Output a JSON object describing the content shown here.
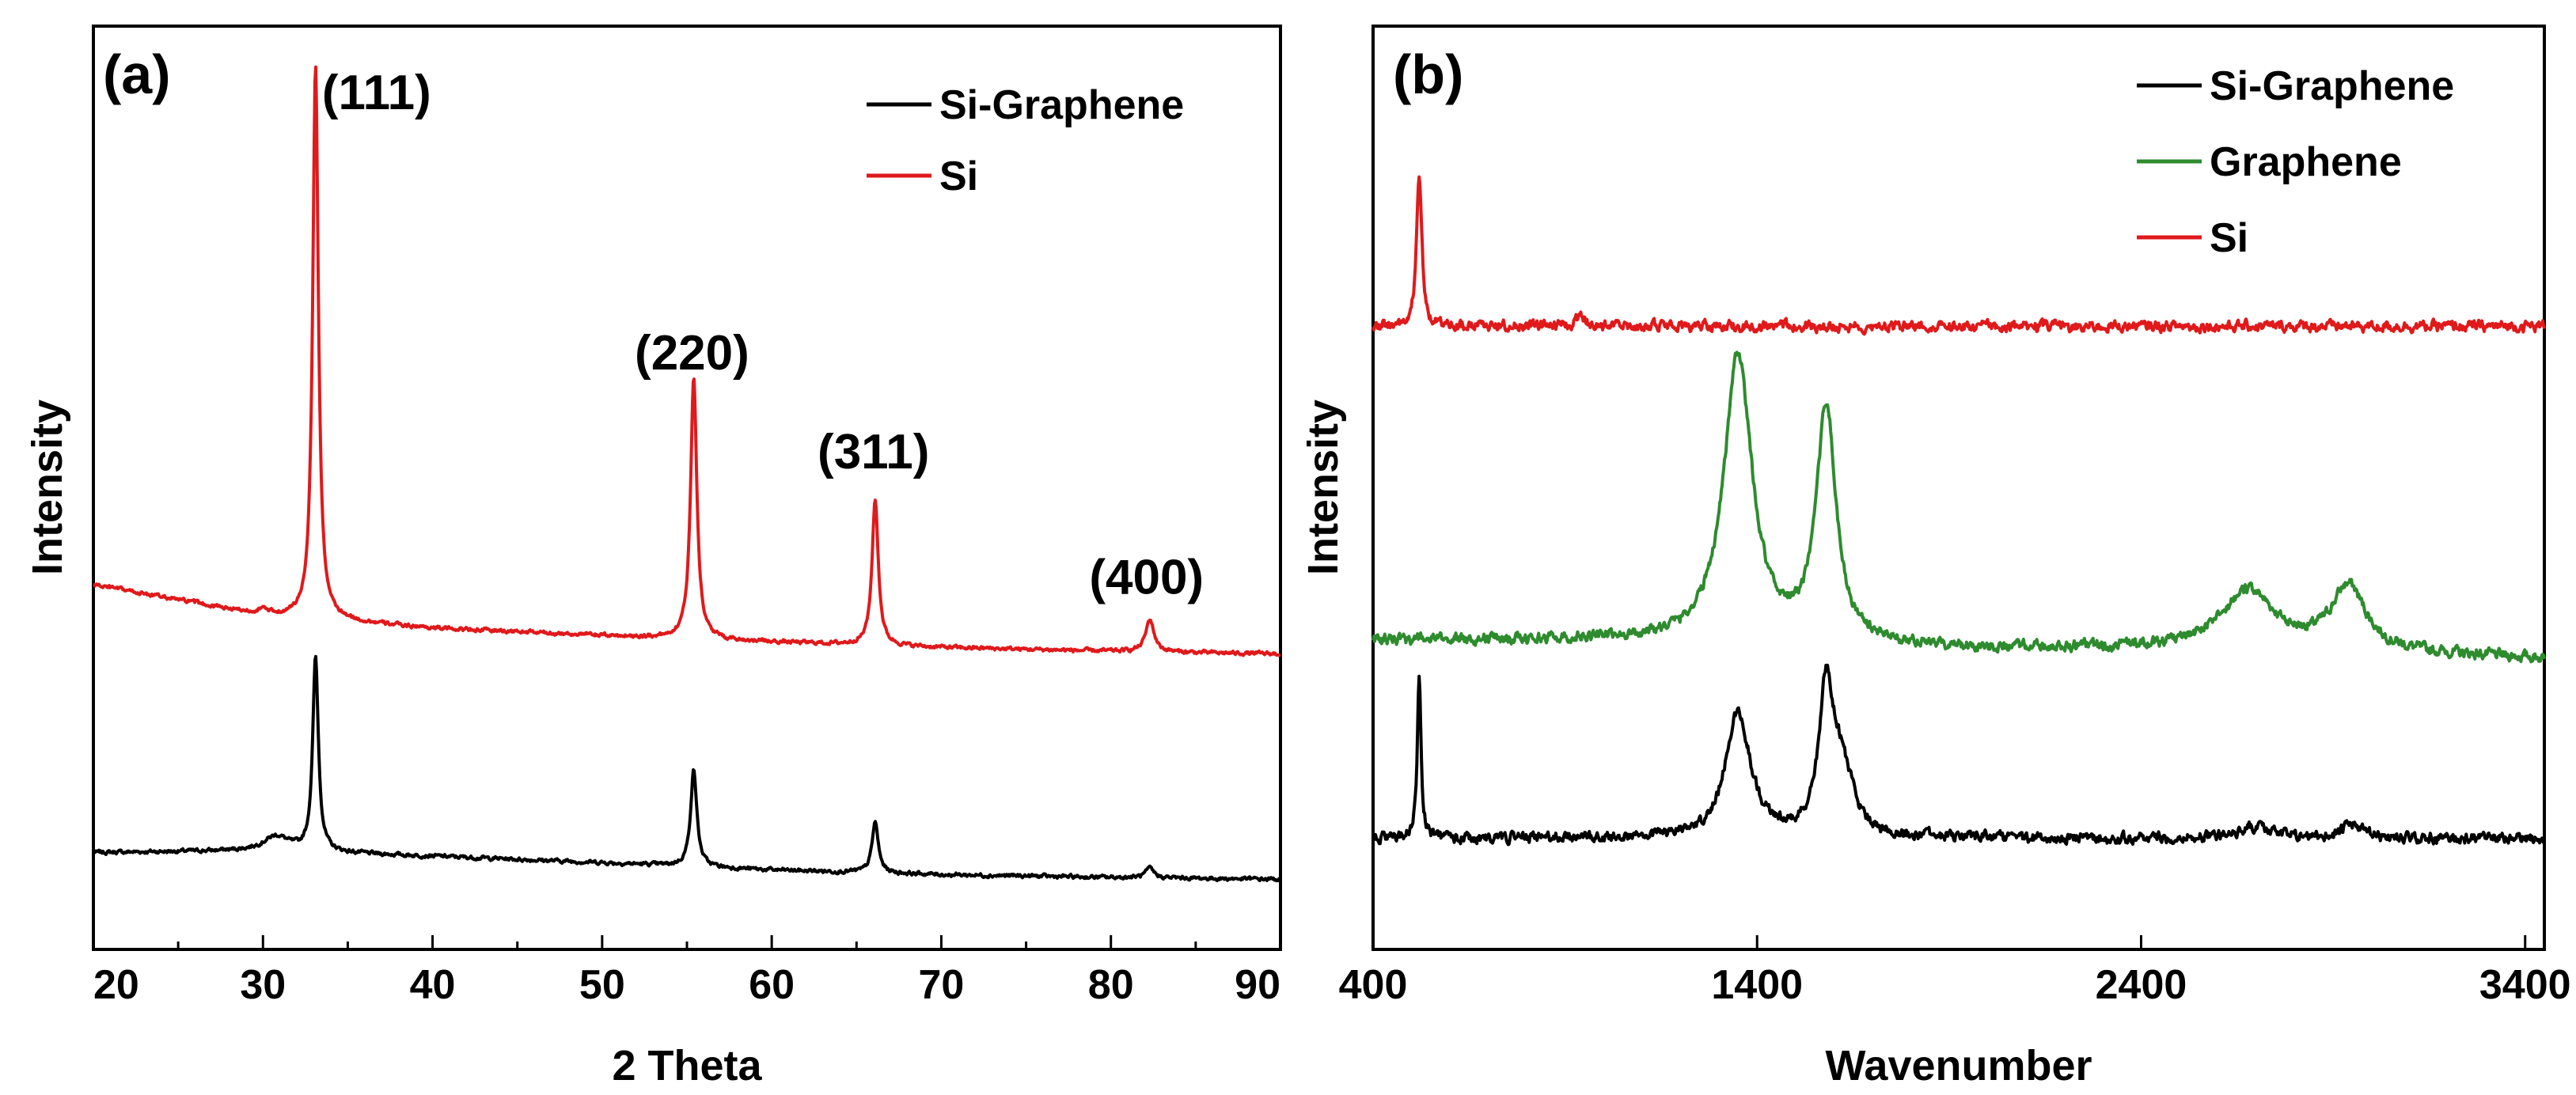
{
  "chart_data": [
    {
      "type": "line",
      "panel_label": "(a)",
      "xlabel": "2 Theta",
      "ylabel": "Intensity",
      "xlim": [
        20,
        90
      ],
      "ylim": [
        0,
        1
      ],
      "xticks": [
        20,
        30,
        40,
        50,
        60,
        70,
        80,
        90
      ],
      "y_tick_labels": false,
      "legend_position": "top-right",
      "series": [
        {
          "name": "Si-Graphene",
          "color": "#000000",
          "baseline": {
            "x": [
              20,
              30,
              40,
              50,
              60,
              70,
              80,
              90
            ],
            "y": [
              0.105,
              0.107,
              0.101,
              0.094,
              0.086,
              0.081,
              0.078,
              0.076
            ]
          },
          "peaks": [
            {
              "x": 30.8,
              "height": 0.016,
              "width": 0.9
            },
            {
              "x": 33.1,
              "height": 0.21,
              "width": 0.2
            },
            {
              "x": 55.4,
              "height": 0.105,
              "width": 0.22
            },
            {
              "x": 66.1,
              "height": 0.055,
              "width": 0.22
            },
            {
              "x": 82.3,
              "height": 0.01,
              "width": 0.3
            }
          ]
        },
        {
          "name": "Si",
          "color": "#e0191b",
          "baseline": {
            "x": [
              20,
              30,
              40,
              50,
              60,
              70,
              80,
              90
            ],
            "y": [
              0.395,
              0.362,
              0.348,
              0.34,
              0.333,
              0.327,
              0.323,
              0.32
            ]
          },
          "peaks": [
            {
              "x": 30.0,
              "height": 0.005,
              "width": 0.4
            },
            {
              "x": 33.1,
              "height": 0.6,
              "width": 0.2
            },
            {
              "x": 55.4,
              "height": 0.285,
              "width": 0.22
            },
            {
              "x": 66.1,
              "height": 0.158,
              "width": 0.22
            },
            {
              "x": 82.3,
              "height": 0.035,
              "width": 0.3
            }
          ]
        }
      ],
      "annotations": [
        {
          "text": "(111)",
          "x": 36.7,
          "y": 0.91
        },
        {
          "text": "(220)",
          "x": 55.3,
          "y": 0.628
        },
        {
          "text": "(311)",
          "x": 66.0,
          "y": 0.521
        },
        {
          "text": "(400)",
          "x": 82.1,
          "y": 0.385
        }
      ]
    },
    {
      "type": "line",
      "panel_label": "(b)",
      "xlabel": "Wavenumber",
      "ylabel": "Intensity",
      "xlim": [
        400,
        3450
      ],
      "ylim": [
        0,
        1
      ],
      "xticks": [
        400,
        1400,
        2400,
        3400
      ],
      "y_tick_labels": false,
      "legend_position": "top-right",
      "series": [
        {
          "name": "Si-Graphene",
          "color": "#000000",
          "baseline": {
            "x": [
              400,
              1000,
              1400,
              2000,
              2400,
              3000,
              3450
            ],
            "y": [
              0.12,
              0.12,
              0.12,
              0.12,
              0.12,
              0.12,
              0.12
            ]
          },
          "peaks": [
            {
              "x": 520,
              "height": 0.17,
              "width": 6
            },
            {
              "x": 1350,
              "height": 0.135,
              "width": 40
            },
            {
              "x": 1580,
              "height": 0.155,
              "width": 22
            },
            {
              "x": 1620,
              "height": 0.07,
              "width": 35
            },
            {
              "x": 2700,
              "height": 0.012,
              "width": 60
            },
            {
              "x": 2950,
              "height": 0.015,
              "width": 30
            }
          ]
        },
        {
          "name": "Graphene",
          "color": "#2e8b2e",
          "baseline": {
            "x": [
              400,
              1000,
              1400,
              2000,
              2400,
              3000,
              3450
            ],
            "y": [
              0.335,
              0.335,
              0.33,
              0.325,
              0.325,
              0.32,
              0.315
            ]
          },
          "peaks": [
            {
              "x": 1350,
              "height": 0.31,
              "width": 45
            },
            {
              "x": 1580,
              "height": 0.255,
              "width": 30
            },
            {
              "x": 2680,
              "height": 0.065,
              "width": 85
            },
            {
              "x": 2940,
              "height": 0.07,
              "width": 55
            }
          ]
        },
        {
          "name": "Si",
          "color": "#e0191b",
          "baseline": {
            "x": [
              400,
              1000,
              1400,
              2000,
              2400,
              3000,
              3450
            ],
            "y": [
              0.675,
              0.675,
              0.675,
              0.675,
              0.675,
              0.675,
              0.675
            ]
          },
          "peaks": [
            {
              "x": 520,
              "height": 0.165,
              "width": 8
            },
            {
              "x": 940,
              "height": 0.01,
              "width": 15
            }
          ]
        }
      ]
    }
  ]
}
